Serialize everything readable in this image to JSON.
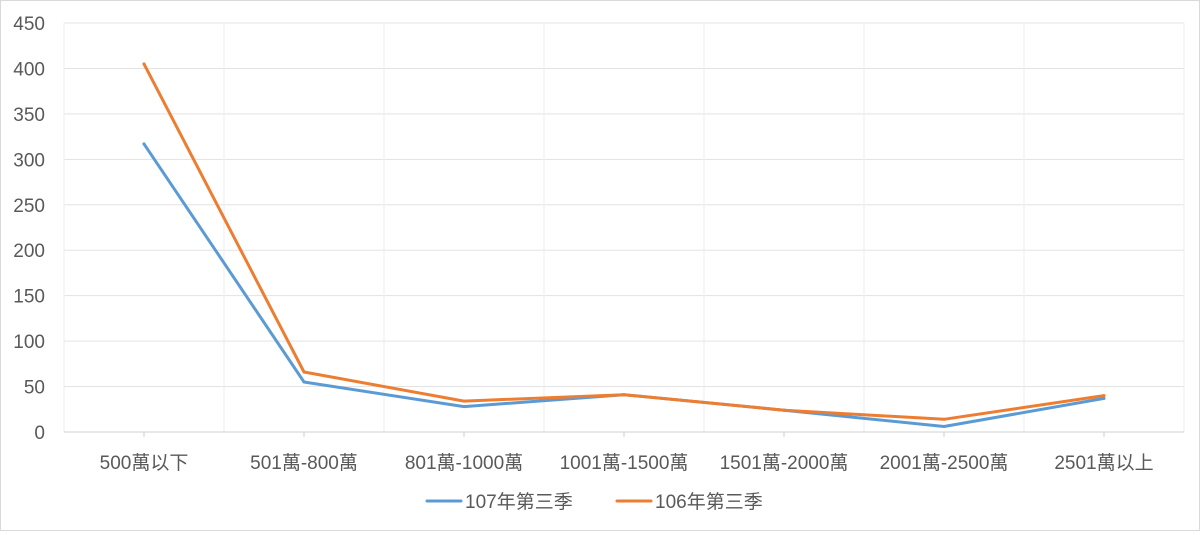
{
  "chart_data": {
    "type": "line",
    "title": "",
    "xlabel": "",
    "ylabel": "",
    "categories": [
      "500萬以下",
      "501萬-800萬",
      "801萬-1000萬",
      "1001萬-1500萬",
      "1501萬-2000萬",
      "2001萬-2500萬",
      "2501萬以上"
    ],
    "ylim": [
      0,
      450
    ],
    "yticks": [
      0,
      50,
      100,
      150,
      200,
      250,
      300,
      350,
      400,
      450
    ],
    "grid": true,
    "legend": "bottom",
    "series": [
      {
        "name": "107年第三季",
        "color": "#5b9bd5",
        "values": [
          317,
          55,
          28,
          41,
          24,
          6,
          37
        ]
      },
      {
        "name": "106年第三季",
        "color": "#ed7d31",
        "values": [
          405,
          66,
          34,
          41,
          24,
          14,
          40
        ]
      }
    ]
  }
}
